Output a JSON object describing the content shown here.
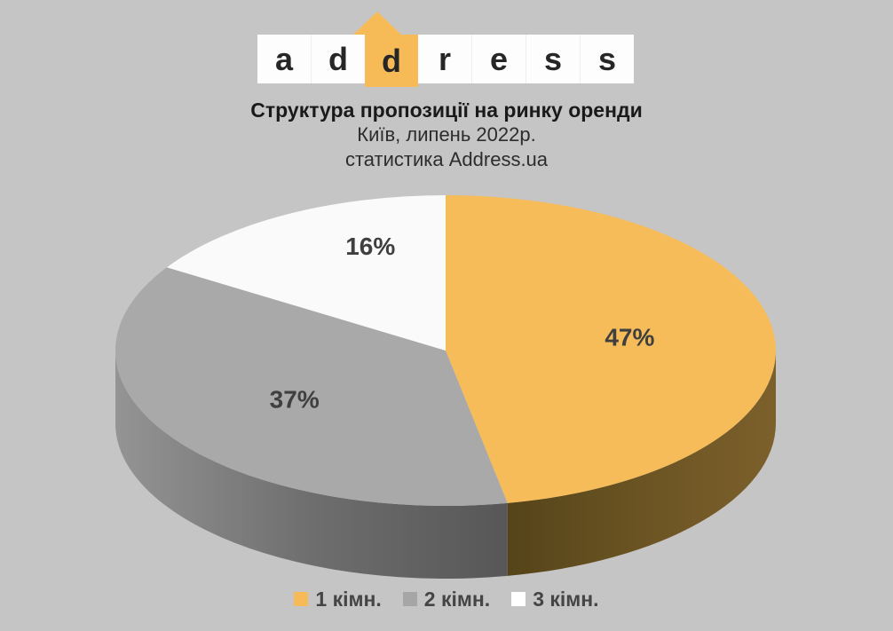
{
  "page": {
    "background": "#c5c5c6"
  },
  "logo": {
    "letters": [
      "a",
      "d",
      "d",
      "r",
      "e",
      "s",
      "s"
    ],
    "highlight_index": 2,
    "house_color": "#f6bb57",
    "bar_color": "#fdfdfd",
    "letter_color": "#262626"
  },
  "header": {
    "title": "Структура пропозиції на ринку оренди",
    "subtitle_location": "Київ, липень 2022р.",
    "subtitle_source": "статистика Address.ua",
    "title_color": "#1a1a1a",
    "subtitle_color": "#2d2d2d"
  },
  "chart_data": {
    "type": "pie",
    "style": "3d",
    "title": "Структура пропозиції на ринку оренди",
    "subtitle": "Київ, липень 2022р. — статистика Address.ua",
    "start_angle_deg": 0,
    "direction": "clockwise",
    "legend_position": "bottom",
    "label_color": "#3f3f3f",
    "slices": [
      {
        "label": "1 кімн.",
        "value_pct": 47,
        "data_label": "47%",
        "top_color": "#f7bc5a",
        "side_gradient": [
          "#554419",
          "#6b5423",
          "#7c602c"
        ]
      },
      {
        "label": "2 кімн.",
        "value_pct": 37,
        "data_label": "37%",
        "top_color": "#a9a9a9",
        "side_gradient": [
          "#949494",
          "#6e6e6e",
          "#575757"
        ]
      },
      {
        "label": "3 кімн.",
        "value_pct": 16,
        "data_label": "16%",
        "top_color": "#fafafa",
        "side_gradient": null
      }
    ]
  },
  "legend": {
    "items": [
      {
        "label": "1 кімн.",
        "color": "#f6bb57"
      },
      {
        "label": "2 кімн.",
        "color": "#a6a6a6"
      },
      {
        "label": "3 кімн.",
        "color": "#ffffff"
      }
    ],
    "text_color": "#454545"
  }
}
